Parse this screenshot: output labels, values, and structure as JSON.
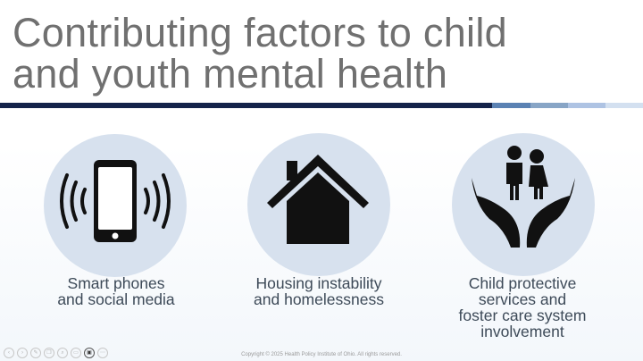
{
  "slide": {
    "title_lines": [
      "Contributing factors to child",
      "and youth mental health"
    ],
    "accent_bar_colors": [
      "#14234a",
      "#5b82b3",
      "#88a5c6",
      "#aec3e3",
      "#d3e0f0"
    ],
    "circle_color": "#d7e1ee",
    "items": [
      {
        "icon": "smartphone-signal-icon",
        "label_lines": [
          "Smart phones",
          "and social media"
        ]
      },
      {
        "icon": "house-icon",
        "label_lines": [
          "Housing instability",
          "and homelessness"
        ]
      },
      {
        "icon": "hands-holding-children-icon",
        "label_lines": [
          "Child protective",
          "services and",
          "foster care system",
          "involvement"
        ]
      }
    ],
    "footer": "Copyright © 2025 Health Policy Institute of Ohio. All rights reserved."
  },
  "toolbar": {
    "buttons": [
      {
        "icon": "previous-icon",
        "glyph": "‹"
      },
      {
        "icon": "next-icon",
        "glyph": "›"
      },
      {
        "icon": "pen-icon",
        "glyph": "✎"
      },
      {
        "icon": "copy-icon",
        "glyph": "❐"
      },
      {
        "icon": "zoom-icon",
        "glyph": "⌕"
      },
      {
        "icon": "subtitles-icon",
        "glyph": "▭"
      },
      {
        "icon": "camera-icon",
        "glyph": "▣"
      },
      {
        "icon": "more-icon",
        "glyph": "⋯"
      }
    ]
  }
}
